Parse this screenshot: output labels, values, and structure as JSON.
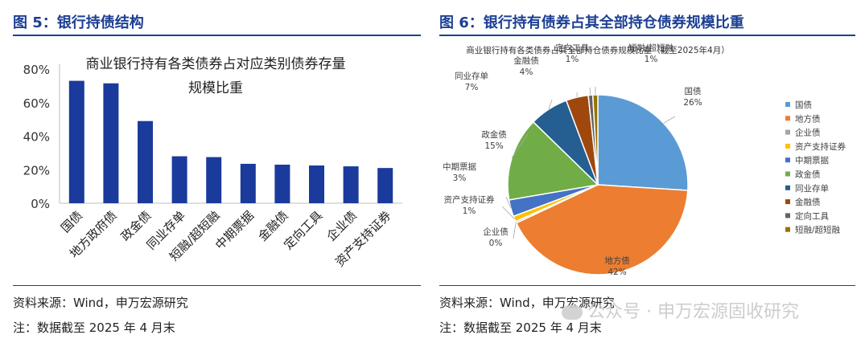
{
  "left": {
    "title": "图 5：银行持债结构",
    "source": "资料来源：Wind，申万宏源研究",
    "note": "注：数据截至 2025 年 4 月末"
  },
  "right": {
    "title": "图 6：银行持有债券占其全部持仓债券规模比重",
    "source": "资料来源：Wind，申万宏源研究",
    "note": "注：数据截至 2025 年 4 月末"
  },
  "watermark": "公众号 · 申万宏源固收研究",
  "chart_data": [
    {
      "type": "bar",
      "title": "商业银行持有各类债券占对应类别债券存量规模比重",
      "title_lines": [
        "商业银行持有各类债券占对应类别债券存量",
        "规模比重"
      ],
      "categories": [
        "国债",
        "地方政府债",
        "政金债",
        "同业存单",
        "短融/超短融",
        "中期票据",
        "金融债",
        "定向工具",
        "企业债",
        "资产支持证券"
      ],
      "values": [
        73,
        71.5,
        49,
        28,
        27.5,
        23.5,
        23,
        22.5,
        22,
        21
      ],
      "yticks": [
        "0%",
        "20%",
        "40%",
        "60%",
        "80%"
      ],
      "ylim": [
        0,
        80
      ],
      "color": "#1a3a9c",
      "grid": false
    },
    {
      "type": "pie",
      "title": "商业银行持有各类债券占其全部持仓债券规模比重（截至2025年4月）",
      "slices": [
        {
          "label": "国债",
          "value": 26,
          "pct": "26%",
          "color": "#5b9bd5"
        },
        {
          "label": "地方债",
          "value": 42,
          "pct": "42%",
          "color": "#ed7d31"
        },
        {
          "label": "企业债",
          "value": 0.3,
          "pct": "0%",
          "color": "#a5a5a5"
        },
        {
          "label": "资产支持证券",
          "value": 1,
          "pct": "1%",
          "color": "#ffc000"
        },
        {
          "label": "中期票据",
          "value": 3,
          "pct": "3%",
          "color": "#4472c4"
        },
        {
          "label": "政金债",
          "value": 15,
          "pct": "15%",
          "color": "#70ad47"
        },
        {
          "label": "同业存单",
          "value": 7,
          "pct": "7%",
          "color": "#255e91"
        },
        {
          "label": "金融债",
          "value": 4,
          "pct": "4%",
          "color": "#9e480e"
        },
        {
          "label": "定向工具",
          "value": 0.8,
          "pct": "1%",
          "color": "#636363"
        },
        {
          "label": "短融/超短融",
          "value": 0.9,
          "pct": "1%",
          "color": "#997300"
        }
      ],
      "legend_position": "right"
    }
  ]
}
